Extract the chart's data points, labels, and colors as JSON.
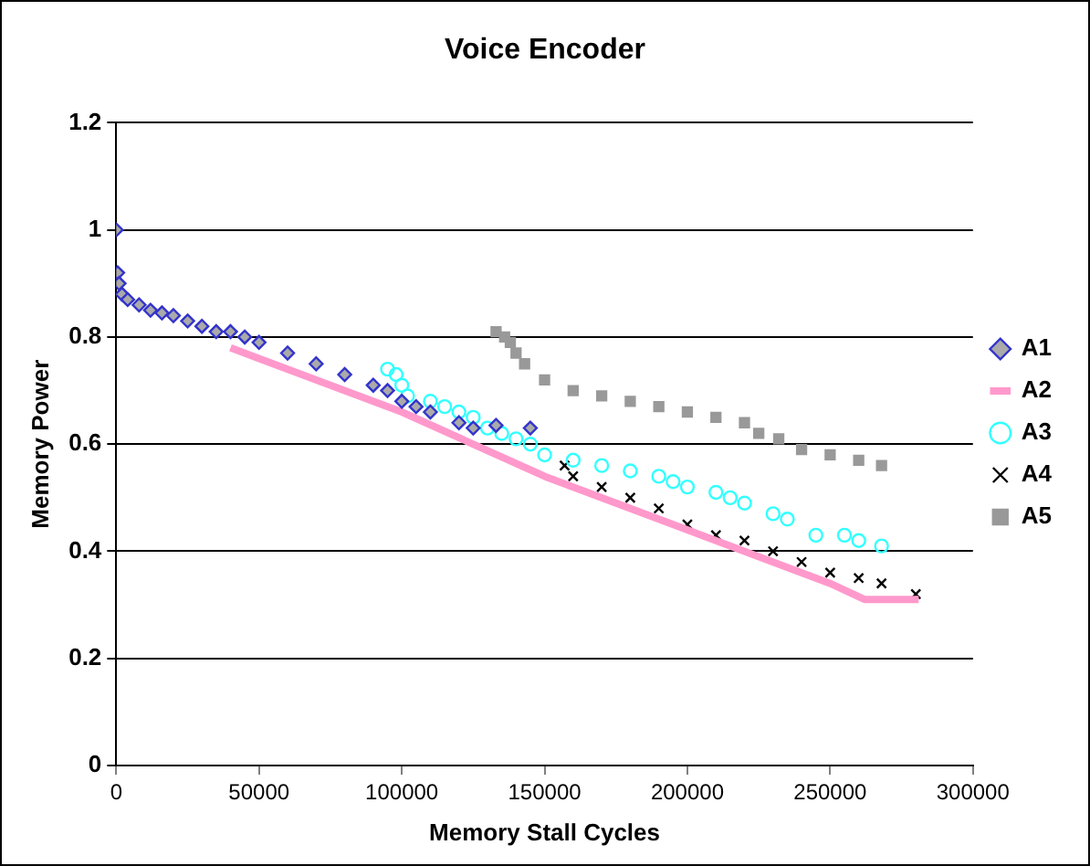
{
  "chart_data": {
    "type": "scatter",
    "title": "Voice Encoder",
    "xlabel": "Memory Stall Cycles",
    "ylabel": "Memory Power",
    "xlim": [
      0,
      300000
    ],
    "xticks": [
      0,
      50000,
      100000,
      150000,
      200000,
      250000,
      300000
    ],
    "ylim": [
      0,
      1.2
    ],
    "yticks": [
      0,
      0.2,
      0.4,
      0.6,
      0.8,
      1,
      1.2
    ],
    "grid": "y",
    "legend": "right",
    "series": [
      {
        "name": "A1",
        "color": "#3333cc",
        "marker": "diamond",
        "x": [
          0,
          500,
          1000,
          2000,
          4000,
          8000,
          12000,
          16000,
          20000,
          25000,
          30000,
          35000,
          40000,
          45000,
          50000,
          60000,
          70000,
          80000,
          90000,
          95000,
          100000,
          105000,
          110000,
          120000,
          125000,
          133000,
          145000
        ],
        "values": [
          1.0,
          0.92,
          0.9,
          0.88,
          0.87,
          0.86,
          0.85,
          0.845,
          0.84,
          0.83,
          0.82,
          0.81,
          0.81,
          0.8,
          0.79,
          0.77,
          0.75,
          0.73,
          0.71,
          0.7,
          0.68,
          0.67,
          0.66,
          0.64,
          0.63,
          0.635,
          0.63
        ]
      },
      {
        "name": "A2",
        "color": "#ff99cc",
        "type": "line",
        "marker": "none",
        "x": [
          40000,
          50000,
          100000,
          150000,
          200000,
          250000,
          262000,
          270000,
          281000
        ],
        "values": [
          0.78,
          0.76,
          0.66,
          0.54,
          0.44,
          0.34,
          0.31,
          0.31,
          0.31
        ]
      },
      {
        "name": "A3",
        "color": "#33ffff",
        "marker": "circle",
        "x": [
          95000,
          98000,
          100000,
          102000,
          110000,
          115000,
          120000,
          125000,
          130000,
          135000,
          140000,
          145000,
          150000,
          160000,
          170000,
          180000,
          190000,
          195000,
          200000,
          210000,
          215000,
          220000,
          230000,
          235000,
          245000,
          255000,
          260000,
          268000
        ],
        "values": [
          0.74,
          0.73,
          0.71,
          0.69,
          0.68,
          0.67,
          0.66,
          0.65,
          0.63,
          0.62,
          0.61,
          0.6,
          0.58,
          0.57,
          0.56,
          0.55,
          0.54,
          0.53,
          0.52,
          0.51,
          0.5,
          0.49,
          0.47,
          0.46,
          0.43,
          0.43,
          0.42,
          0.41
        ]
      },
      {
        "name": "A4",
        "color": "#000000",
        "marker": "cross",
        "x": [
          157000,
          160000,
          170000,
          180000,
          190000,
          200000,
          210000,
          220000,
          230000,
          240000,
          250000,
          260000,
          268000,
          280000
        ],
        "values": [
          0.56,
          0.54,
          0.52,
          0.5,
          0.48,
          0.45,
          0.43,
          0.42,
          0.4,
          0.38,
          0.36,
          0.35,
          0.34,
          0.32
        ]
      },
      {
        "name": "A5",
        "color": "#999999",
        "marker": "square",
        "x": [
          133000,
          136000,
          138000,
          140000,
          143000,
          150000,
          160000,
          170000,
          180000,
          190000,
          200000,
          210000,
          220000,
          225000,
          232000,
          240000,
          250000,
          260000,
          268000
        ],
        "values": [
          0.81,
          0.8,
          0.79,
          0.77,
          0.75,
          0.72,
          0.7,
          0.69,
          0.68,
          0.67,
          0.66,
          0.65,
          0.64,
          0.62,
          0.61,
          0.59,
          0.58,
          0.57,
          0.56
        ]
      }
    ]
  }
}
